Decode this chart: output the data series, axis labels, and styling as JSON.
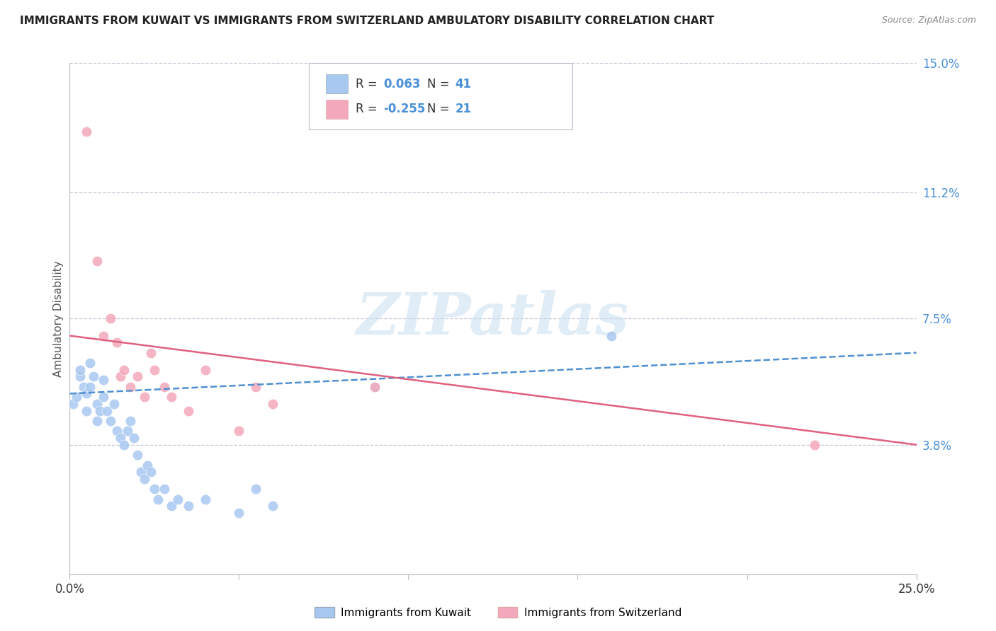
{
  "title": "IMMIGRANTS FROM KUWAIT VS IMMIGRANTS FROM SWITZERLAND AMBULATORY DISABILITY CORRELATION CHART",
  "source": "Source: ZipAtlas.com",
  "ylabel": "Ambulatory Disability",
  "xlim": [
    0.0,
    0.25
  ],
  "ylim": [
    0.0,
    0.15
  ],
  "yticks": [
    0.038,
    0.075,
    0.112,
    0.15
  ],
  "ytick_labels": [
    "3.8%",
    "7.5%",
    "11.2%",
    "15.0%"
  ],
  "kuwait_color": "#A8C8F0",
  "switzerland_color": "#F4A8BB",
  "kuwait_line_color": "#5090D0",
  "switzerland_line_color": "#E06080",
  "kuwait_R": 0.063,
  "kuwait_N": 41,
  "switzerland_R": -0.255,
  "switzerland_N": 21,
  "kuwait_points_x": [
    0.001,
    0.002,
    0.003,
    0.003,
    0.004,
    0.005,
    0.005,
    0.006,
    0.006,
    0.007,
    0.008,
    0.008,
    0.009,
    0.01,
    0.01,
    0.011,
    0.012,
    0.013,
    0.014,
    0.015,
    0.016,
    0.017,
    0.018,
    0.019,
    0.02,
    0.021,
    0.022,
    0.023,
    0.024,
    0.025,
    0.026,
    0.028,
    0.03,
    0.032,
    0.035,
    0.04,
    0.05,
    0.055,
    0.06,
    0.09,
    0.16
  ],
  "kuwait_points_y": [
    0.05,
    0.052,
    0.058,
    0.06,
    0.055,
    0.053,
    0.048,
    0.055,
    0.062,
    0.058,
    0.05,
    0.045,
    0.048,
    0.052,
    0.057,
    0.048,
    0.045,
    0.05,
    0.042,
    0.04,
    0.038,
    0.042,
    0.045,
    0.04,
    0.035,
    0.03,
    0.028,
    0.032,
    0.03,
    0.025,
    0.022,
    0.025,
    0.02,
    0.022,
    0.02,
    0.022,
    0.018,
    0.025,
    0.02,
    0.055,
    0.07
  ],
  "switzerland_points_x": [
    0.005,
    0.008,
    0.01,
    0.012,
    0.014,
    0.015,
    0.016,
    0.018,
    0.02,
    0.022,
    0.024,
    0.025,
    0.028,
    0.03,
    0.035,
    0.04,
    0.05,
    0.055,
    0.06,
    0.09,
    0.22
  ],
  "switzerland_points_y": [
    0.13,
    0.092,
    0.07,
    0.075,
    0.068,
    0.058,
    0.06,
    0.055,
    0.058,
    0.052,
    0.065,
    0.06,
    0.055,
    0.052,
    0.048,
    0.06,
    0.042,
    0.055,
    0.05,
    0.055,
    0.038
  ],
  "watermark_text": "ZIPatlas",
  "background_color": "#FFFFFF",
  "grid_color": "#C8C8D8",
  "legend_text_color": "#333333",
  "value_color": "#4A90D9",
  "neg_value_color": "#E06080"
}
